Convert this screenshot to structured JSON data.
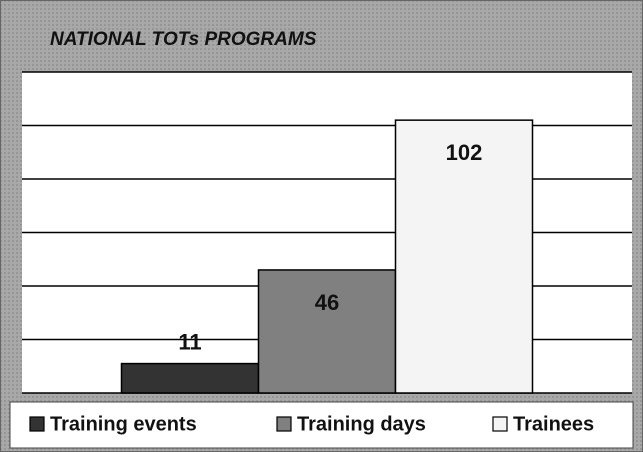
{
  "chart_data": {
    "type": "bar",
    "title": "NATIONAL TOTs PROGRAMS",
    "categories": [
      null
    ],
    "series": [
      {
        "name": "Training events",
        "color": "#333333",
        "values": [
          11
        ]
      },
      {
        "name": "Training days",
        "color": "#808080",
        "values": [
          46
        ]
      },
      {
        "name": "Trainees",
        "color": "#f4f4f4",
        "values": [
          102
        ]
      }
    ],
    "ylim": [
      0,
      120
    ],
    "yticks": [
      0,
      20,
      40,
      60,
      80,
      100,
      120
    ],
    "grid": true,
    "legend": "bottom"
  }
}
